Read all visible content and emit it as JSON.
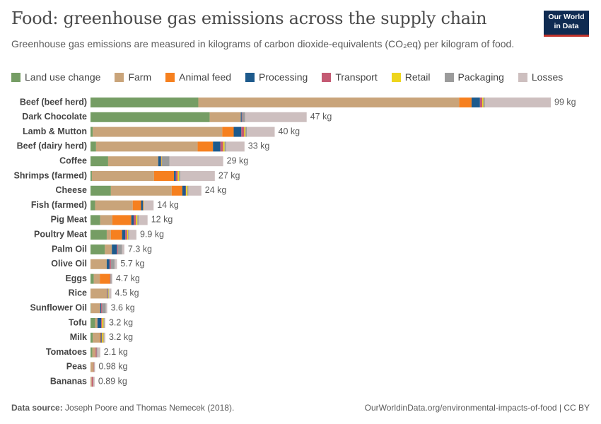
{
  "chart_data": {
    "type": "stacked-bar-horizontal",
    "title": "Food: greenhouse gas emissions across the supply chain",
    "subtitle": "Greenhouse gas emissions are measured in kilograms of carbon dioxide-equivalents (CO₂eq) per kilogram of food.",
    "logo": [
      "Our World",
      "in Data"
    ],
    "source_label": "Data source:",
    "source": "Joseph Poore and Thomas Nemecek (2018).",
    "credit": "OurWorldinData.org/environmental-impacts-of-food | CC BY",
    "categories": [
      "Beef (beef herd)",
      "Dark Chocolate",
      "Lamb & Mutton",
      "Beef (dairy herd)",
      "Coffee",
      "Shrimps (farmed)",
      "Cheese",
      "Fish (farmed)",
      "Pig Meat",
      "Poultry Meat",
      "Palm Oil",
      "Olive Oil",
      "Eggs",
      "Rice",
      "Sunflower Oil",
      "Tofu",
      "Milk",
      "Tomatoes",
      "Peas",
      "Bananas"
    ],
    "total_labels": [
      "99 kg",
      "47 kg",
      "40 kg",
      "33 kg",
      "29 kg",
      "27 kg",
      "24 kg",
      "14 kg",
      "12 kg",
      "9.9 kg",
      "7.3 kg",
      "5.7 kg",
      "4.7 kg",
      "4.5 kg",
      "3.6 kg",
      "3.2 kg",
      "3.2 kg",
      "2.1 kg",
      "0.98 kg",
      "0.89 kg"
    ],
    "series": [
      {
        "name": "Land use change",
        "color": "#759d64",
        "values": [
          23.24,
          25.7,
          0.49,
          1.2,
          3.8,
          0.3,
          4.4,
          1.0,
          2.1,
          3.5,
          3.1,
          0,
          0.7,
          0,
          0.1,
          1.0,
          0.5,
          0.4,
          0,
          0
        ]
      },
      {
        "name": "Farm",
        "color": "#c9a47a",
        "values": [
          56.23,
          6.7,
          27.91,
          21.9,
          10.8,
          13.4,
          13.1,
          8.1,
          2.6,
          0.9,
          1.5,
          3.5,
          1.3,
          3.6,
          2.0,
          0.5,
          1.5,
          0.7,
          0.7,
          0.27
        ]
      },
      {
        "name": "Animal feed",
        "color": "#f6801f",
        "values": [
          2.68,
          0,
          2.47,
          3.3,
          0,
          4.3,
          2.3,
          1.8,
          4.1,
          2.4,
          0,
          0,
          2.2,
          0,
          0,
          0,
          0.2,
          0,
          0,
          0
        ]
      },
      {
        "name": "Processing",
        "color": "#1d5a8c",
        "values": [
          1.81,
          0.2,
          1.64,
          1.6,
          0.6,
          0.4,
          0.7,
          0.4,
          0.5,
          0.7,
          1.1,
          0.6,
          0,
          0.1,
          0.2,
          0.8,
          0.2,
          0,
          0,
          0
        ]
      },
      {
        "name": "Transport",
        "color": "#c45a73",
        "values": [
          0.49,
          0.1,
          0.63,
          0.6,
          0.1,
          0.4,
          0.1,
          0.1,
          0.5,
          0.4,
          0.2,
          0.3,
          0.1,
          0.1,
          0.2,
          0.2,
          0.1,
          0.2,
          0.1,
          0.3
        ]
      },
      {
        "name": "Retail",
        "color": "#eed51c",
        "values": [
          0.23,
          0,
          0.26,
          0.3,
          0.1,
          0.3,
          0.3,
          0.1,
          0.3,
          0.2,
          0,
          0,
          0,
          0.1,
          0,
          0.3,
          0.3,
          0,
          0,
          0.02
        ]
      },
      {
        "name": "Packaging",
        "color": "#9b9b9b",
        "values": [
          0.35,
          0.6,
          0.33,
          0.3,
          1.6,
          0.3,
          0.2,
          0.1,
          0.3,
          0.2,
          0.9,
          0.8,
          0.2,
          0.1,
          0.8,
          0.2,
          0.1,
          0.15,
          0.04,
          0.07
        ]
      },
      {
        "name": "Losses",
        "color": "#cdbfbf",
        "values": [
          14.2,
          13.3,
          5.98,
          4.0,
          11.6,
          7.4,
          2.8,
          2.0,
          1.9,
          1.6,
          0.5,
          0.5,
          0.2,
          0.5,
          0.3,
          0.2,
          0.3,
          0.65,
          0.14,
          0.23
        ]
      }
    ]
  }
}
